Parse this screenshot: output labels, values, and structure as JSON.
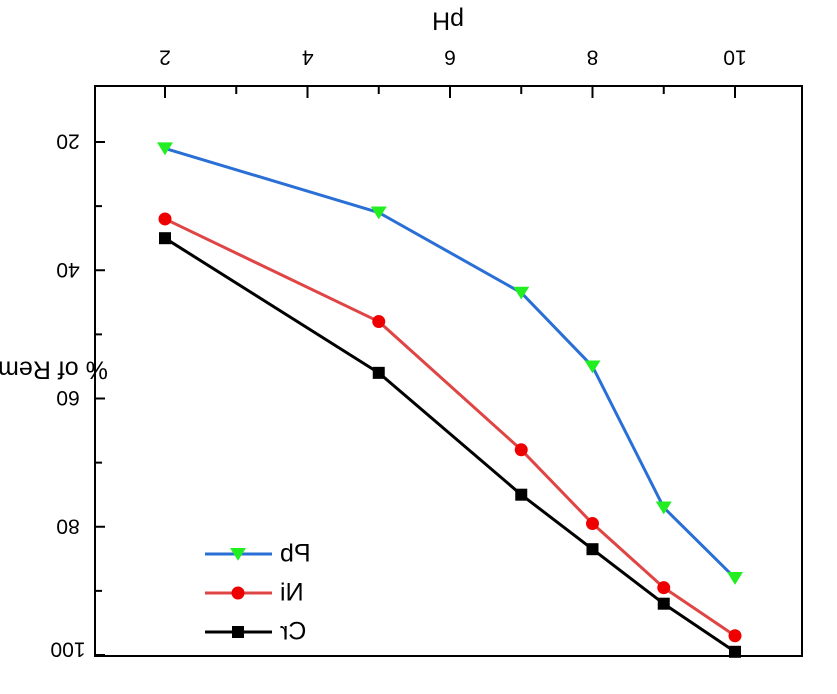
{
  "chart_data": {
    "type": "line",
    "xlabel": "pH",
    "ylabel": "% of Removal",
    "x_ticks": [
      "2",
      "4",
      "6",
      "8",
      "10"
    ],
    "y_ticks": [
      "20",
      "40",
      "60",
      "80",
      "100"
    ],
    "xlim": [
      2,
      10
    ],
    "ylim": [
      20,
      100
    ],
    "y_inverted": true,
    "x_axis_position": "top",
    "mirrored": true,
    "grid": false,
    "legend_position": "bottom-left",
    "series": [
      {
        "name": "Pb",
        "color": "#2a6fd6",
        "marker": "triangle-down",
        "marker_color": "#22ee22",
        "x": [
          2,
          5,
          7,
          8,
          9,
          10
        ],
        "y": [
          21,
          31,
          43.5,
          55,
          77,
          88
        ]
      },
      {
        "name": "Ni",
        "color": "#e04545",
        "marker": "circle",
        "marker_color": "#ee0000",
        "x": [
          2,
          5,
          7,
          8,
          9,
          10
        ],
        "y": [
          32,
          48,
          68,
          79.5,
          89.5,
          97
        ]
      },
      {
        "name": "Cr",
        "color": "#000000",
        "marker": "square",
        "marker_color": "#000000",
        "x": [
          2,
          5,
          7,
          8,
          9,
          10
        ],
        "y": [
          35,
          56,
          75,
          83.5,
          92,
          99.5
        ]
      }
    ]
  }
}
